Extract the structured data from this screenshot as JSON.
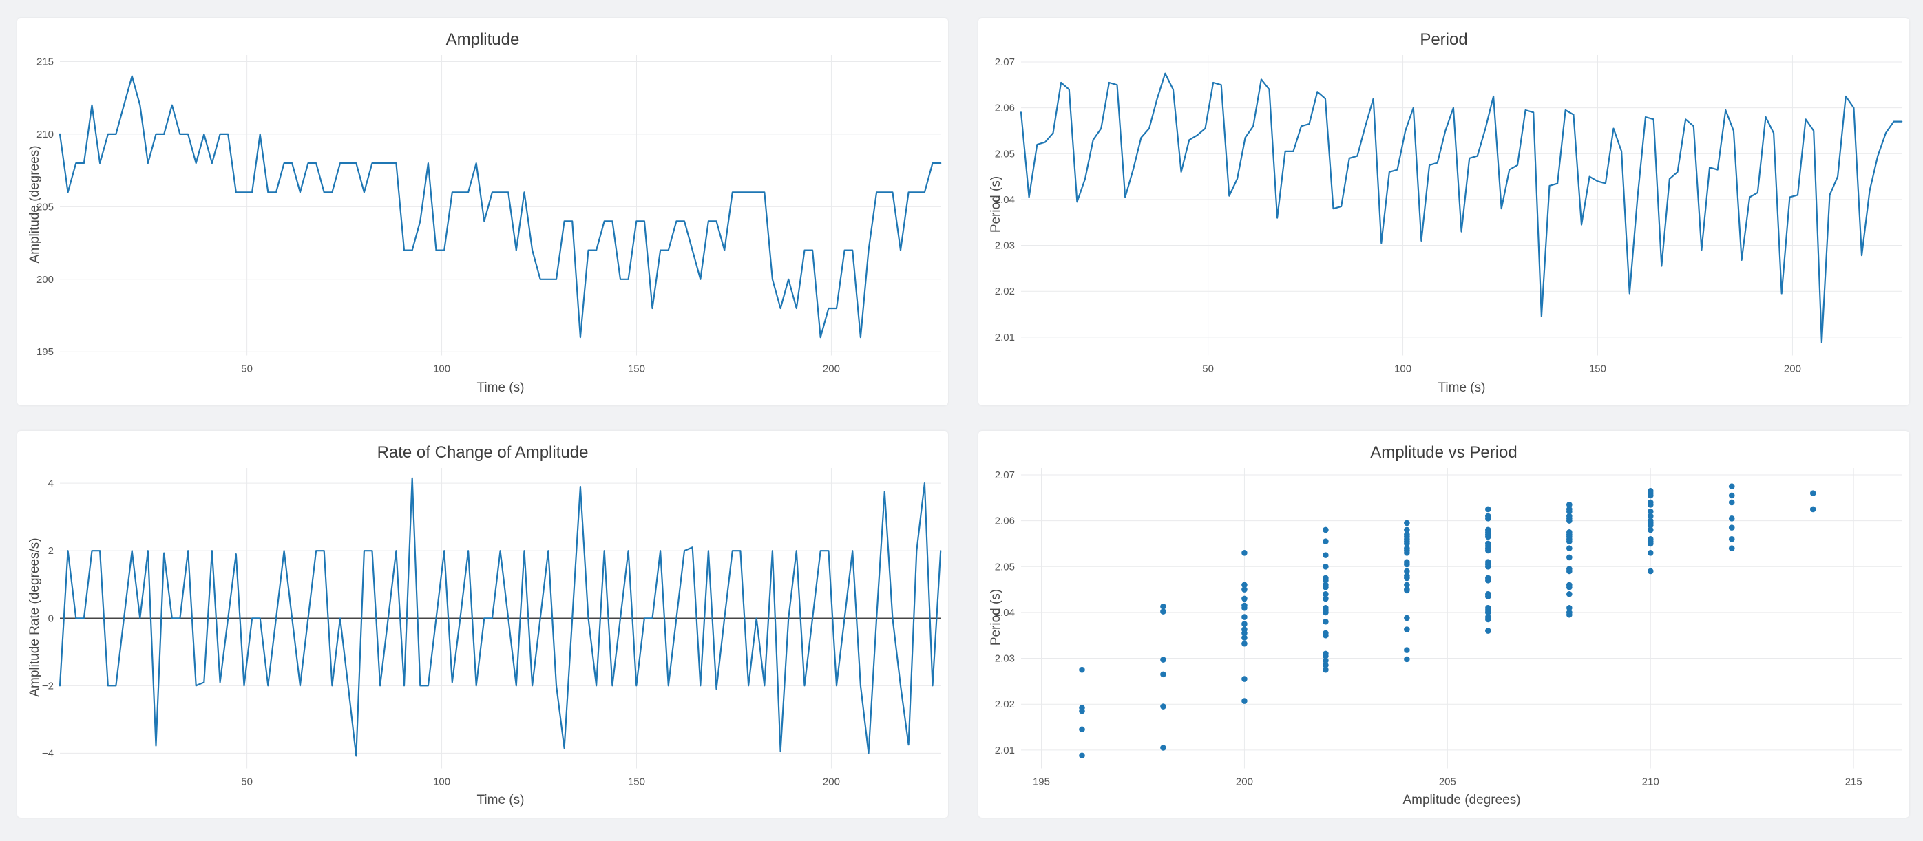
{
  "page": {
    "background": "#f1f2f4",
    "card_background": "#ffffff"
  },
  "theme": {
    "accent": "#1f77b4",
    "grid_color": "#e9eaec",
    "zero_line_color": "#444444",
    "title_color": "#3d3d3d",
    "axis_label_color": "#4a4a4a",
    "tick_color": "#565656"
  },
  "chart_data": [
    {
      "type": "line",
      "title": "Amplitude",
      "xlabel": "Time (s)",
      "ylabel": "Amplitude (degrees)",
      "legend_position": "none",
      "grid": true,
      "x_start": 2,
      "x_step": 2.055,
      "xlim": [
        2,
        228.2
      ],
      "ylim": [
        194.75,
        215.45
      ],
      "xticks": [
        50,
        100,
        150,
        200
      ],
      "xtick_labels": [
        "50",
        "100",
        "150",
        "200"
      ],
      "yticks": [
        195,
        200,
        205,
        210,
        215
      ],
      "ytick_labels": [
        "195",
        "200",
        "205",
        "210",
        "215"
      ],
      "values": [
        210,
        206,
        208,
        208,
        212,
        208,
        210,
        210,
        212,
        214,
        212,
        208,
        210,
        210,
        212,
        210,
        210,
        208,
        210,
        208,
        210,
        210,
        206,
        206,
        206,
        210,
        206,
        206,
        208,
        208,
        206,
        208,
        208,
        206,
        206,
        208,
        208,
        208,
        206,
        208,
        208,
        208,
        208,
        202,
        202,
        204,
        208,
        202,
        202,
        206,
        206,
        206,
        208,
        204,
        206,
        206,
        206,
        202,
        206,
        202,
        200,
        200,
        200,
        204,
        204,
        196,
        202,
        202,
        204,
        204,
        200,
        200,
        204,
        204,
        198,
        202,
        202,
        204,
        204,
        202,
        200,
        204,
        204,
        202,
        206,
        206,
        206,
        206,
        206,
        200,
        198,
        200,
        198,
        202,
        202,
        196,
        198,
        198,
        202,
        202,
        196,
        202,
        206,
        206,
        206,
        202,
        206,
        206,
        206,
        208,
        208
      ]
    },
    {
      "type": "line",
      "title": "Period",
      "xlabel": "Time (s)",
      "ylabel": "Period (s)",
      "legend_position": "none",
      "grid": true,
      "x_start": 2,
      "x_step": 2.055,
      "xlim": [
        2,
        228.2
      ],
      "ylim": [
        2.006,
        2.0715
      ],
      "xticks": [
        50,
        100,
        150,
        200
      ],
      "xtick_labels": [
        "50",
        "100",
        "150",
        "200"
      ],
      "yticks": [
        2.01,
        2.02,
        2.03,
        2.04,
        2.05,
        2.06,
        2.07
      ],
      "ytick_labels": [
        "2.01",
        "2.02",
        "2.03",
        "2.04",
        "2.05",
        "2.06",
        "2.07"
      ],
      "values": [
        2.059,
        2.0405,
        2.052,
        2.0525,
        2.0545,
        2.0655,
        2.064,
        2.0395,
        2.0445,
        2.053,
        2.0555,
        2.0655,
        2.065,
        2.0405,
        2.0465,
        2.0535,
        2.0555,
        2.062,
        2.0675,
        2.064,
        2.046,
        2.053,
        2.054,
        2.0555,
        2.0655,
        2.065,
        2.0408,
        2.0445,
        2.0535,
        2.056,
        2.0662,
        2.064,
        2.036,
        2.0505,
        2.0505,
        2.056,
        2.0565,
        2.0635,
        2.062,
        2.038,
        2.0385,
        2.049,
        2.0495,
        2.056,
        2.062,
        2.0305,
        2.046,
        2.0465,
        2.055,
        2.06,
        2.031,
        2.0475,
        2.048,
        2.055,
        2.06,
        2.033,
        2.049,
        2.0495,
        2.0555,
        2.0625,
        2.038,
        2.0465,
        2.0475,
        2.0595,
        2.059,
        2.0145,
        2.043,
        2.0435,
        2.0595,
        2.0585,
        2.0345,
        2.045,
        2.044,
        2.0435,
        2.0555,
        2.0505,
        2.0195,
        2.0405,
        2.058,
        2.0575,
        2.0255,
        2.0445,
        2.046,
        2.0575,
        2.056,
        2.029,
        2.047,
        2.0465,
        2.0595,
        2.055,
        2.0268,
        2.0405,
        2.0415,
        2.058,
        2.0545,
        2.0195,
        2.0405,
        2.041,
        2.0575,
        2.055,
        2.0088,
        2.041,
        2.045,
        2.0625,
        2.06,
        2.0278,
        2.042,
        2.0495,
        2.0545,
        2.057,
        2.057
      ]
    },
    {
      "type": "line",
      "title": "Rate of Change of Amplitude",
      "xlabel": "Time (s)",
      "ylabel": "Amplitude Rate (degrees/s)",
      "legend_position": "none",
      "grid": true,
      "zero_line": true,
      "x_start": 2,
      "x_step": 2.055,
      "xlim": [
        2,
        228.2
      ],
      "ylim": [
        -4.45,
        4.45
      ],
      "xticks": [
        50,
        100,
        150,
        200
      ],
      "xtick_labels": [
        "50",
        "100",
        "150",
        "200"
      ],
      "yticks": [
        -4,
        -2,
        0,
        2,
        4
      ],
      "ytick_labels": [
        "−4",
        "−2",
        "0",
        "2",
        "4"
      ],
      "values": [
        -2,
        2,
        0,
        0,
        2,
        2,
        -2,
        -2,
        0,
        2,
        0,
        2,
        -3.78,
        1.93,
        0,
        0,
        2,
        -2,
        -1.9,
        2,
        -1.9,
        0,
        1.9,
        -2,
        0,
        0,
        -2,
        0,
        2,
        0,
        -2,
        0,
        2,
        2,
        -2,
        0,
        -2,
        -4.08,
        2,
        2,
        -2,
        0,
        2,
        -2,
        4.15,
        -2,
        -2,
        0,
        2,
        -1.9,
        0,
        2,
        -2,
        0,
        0,
        2,
        0,
        -2,
        2,
        -2,
        0,
        2,
        -2,
        -3.85,
        0,
        3.9,
        0,
        -2,
        2,
        -2,
        0,
        2,
        -2,
        0,
        0,
        2,
        -2,
        0,
        2,
        2.1,
        -2,
        2,
        -2.1,
        0,
        2,
        2,
        -2,
        0,
        -2,
        2,
        -3.95,
        0,
        2,
        -2,
        0,
        2,
        2,
        -2,
        0,
        2,
        -2,
        -4,
        0,
        3.75,
        0,
        -2,
        -3.75,
        2,
        4,
        -2,
        2
      ]
    },
    {
      "type": "scatter",
      "title": "Amplitude vs Period",
      "xlabel": "Amplitude (degrees)",
      "ylabel": "Period (s)",
      "legend_position": "none",
      "grid": true,
      "xlim": [
        194.5,
        216.2
      ],
      "ylim": [
        2.006,
        2.0715
      ],
      "xticks": [
        195,
        200,
        205,
        210,
        215
      ],
      "xtick_labels": [
        "195",
        "200",
        "205",
        "210",
        "215"
      ],
      "yticks": [
        2.01,
        2.02,
        2.03,
        2.04,
        2.05,
        2.06,
        2.07
      ],
      "ytick_labels": [
        "2.01",
        "2.02",
        "2.03",
        "2.04",
        "2.05",
        "2.06",
        "2.07"
      ],
      "groups": [
        {
          "amplitude": 196,
          "periods": [
            2.0088,
            2.0145,
            2.0185,
            2.0192,
            2.0275
          ]
        },
        {
          "amplitude": 198,
          "periods": [
            2.0105,
            2.0195,
            2.0265,
            2.0297,
            2.0402,
            2.0413
          ]
        },
        {
          "amplitude": 200,
          "periods": [
            2.0207,
            2.0255,
            2.0332,
            2.0345,
            2.0355,
            2.0363,
            2.0375,
            2.039,
            2.041,
            2.0415,
            2.043,
            2.045,
            2.046,
            2.053
          ]
        },
        {
          "amplitude": 202,
          "periods": [
            2.0275,
            2.0285,
            2.0295,
            2.0305,
            2.031,
            2.035,
            2.0355,
            2.038,
            2.04,
            2.0405,
            2.041,
            2.043,
            2.044,
            2.0455,
            2.046,
            2.047,
            2.0475,
            2.05,
            2.0525,
            2.0555,
            2.058
          ]
        },
        {
          "amplitude": 204,
          "periods": [
            2.0298,
            2.0318,
            2.0363,
            2.0388,
            2.0448,
            2.045,
            2.046,
            2.0475,
            2.048,
            2.049,
            2.0505,
            2.051,
            2.053,
            2.0535,
            2.054,
            2.055,
            2.0555,
            2.056,
            2.0565,
            2.057,
            2.058,
            2.0595
          ]
        },
        {
          "amplitude": 206,
          "periods": [
            2.036,
            2.0385,
            2.039,
            2.04,
            2.0405,
            2.041,
            2.0435,
            2.044,
            2.047,
            2.0475,
            2.05,
            2.0505,
            2.051,
            2.0535,
            2.054,
            2.0545,
            2.055,
            2.0565,
            2.057,
            2.0575,
            2.058,
            2.0605,
            2.061,
            2.0625
          ]
        },
        {
          "amplitude": 208,
          "periods": [
            2.0395,
            2.04,
            2.041,
            2.044,
            2.0455,
            2.046,
            2.049,
            2.0495,
            2.052,
            2.054,
            2.0555,
            2.056,
            2.0565,
            2.057,
            2.0575,
            2.06,
            2.0605,
            2.061,
            2.062,
            2.0625,
            2.0635
          ]
        },
        {
          "amplitude": 210,
          "periods": [
            2.049,
            2.053,
            2.055,
            2.0555,
            2.056,
            2.058,
            2.059,
            2.0595,
            2.06,
            2.061,
            2.062,
            2.0635,
            2.064,
            2.0655,
            2.066,
            2.0665
          ]
        },
        {
          "amplitude": 212,
          "periods": [
            2.054,
            2.056,
            2.0585,
            2.0605,
            2.064,
            2.0655,
            2.0675
          ]
        },
        {
          "amplitude": 214,
          "periods": [
            2.0625,
            2.066
          ]
        }
      ]
    }
  ]
}
